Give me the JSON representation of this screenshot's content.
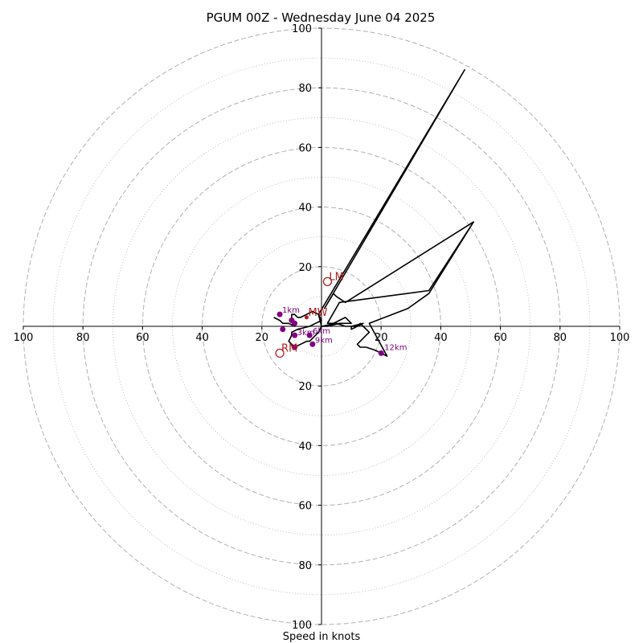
{
  "chart_data": {
    "type": "hodograph",
    "title": "PGUM 00Z - Wednesday June 04 2025",
    "xlabel": "Speed in knots",
    "rings": [
      20,
      40,
      60,
      80,
      100
    ],
    "minor_rings": [
      10,
      30,
      50,
      70,
      90
    ],
    "tick_labels": [
      "100",
      "80",
      "60",
      "40",
      "20",
      "20",
      "40",
      "60",
      "80",
      "100"
    ],
    "axis_range": [
      -100,
      100
    ],
    "colors": {
      "trace": "#000000",
      "height": "#800080",
      "motion": "#b22222",
      "grid": "#b0b0b0"
    },
    "trace": [
      [
        -16,
        3
      ],
      [
        -14,
        2
      ],
      [
        -13,
        1
      ],
      [
        -11,
        1
      ],
      [
        -9,
        0
      ],
      [
        -9,
        1
      ],
      [
        -10,
        2
      ],
      [
        -10,
        4
      ],
      [
        -9,
        4
      ],
      [
        -8,
        3
      ],
      [
        -7,
        3
      ],
      [
        -5,
        4
      ],
      [
        -3,
        5
      ],
      [
        -1,
        4
      ],
      [
        0,
        2
      ],
      [
        -2,
        1
      ],
      [
        -4,
        0
      ],
      [
        -8,
        -1
      ],
      [
        -10,
        -2
      ],
      [
        -10,
        -3
      ],
      [
        -11,
        -5
      ],
      [
        -10,
        -6
      ],
      [
        -9,
        -7
      ],
      [
        -7,
        -6
      ],
      [
        -5,
        -5
      ],
      [
        -4,
        -5
      ],
      [
        -3,
        -4
      ],
      [
        -1,
        -2
      ],
      [
        0,
        0
      ],
      [
        2,
        0
      ],
      [
        6,
        1
      ],
      [
        8,
        1
      ],
      [
        10,
        1
      ],
      [
        9,
        2
      ],
      [
        8,
        3
      ],
      [
        6,
        2
      ],
      [
        4,
        1
      ],
      [
        2,
        1
      ],
      [
        6,
        8
      ],
      [
        36,
        12
      ],
      [
        51,
        35
      ],
      [
        8,
        8
      ],
      [
        5,
        10
      ],
      [
        4,
        11
      ],
      [
        1,
        6
      ],
      [
        48,
        86
      ],
      [
        -1,
        4
      ],
      [
        0,
        0
      ],
      [
        5,
        1
      ],
      [
        8,
        0
      ],
      [
        12,
        0
      ],
      [
        14,
        1
      ],
      [
        10,
        0
      ],
      [
        10,
        -1
      ],
      [
        12,
        0
      ],
      [
        13,
        1
      ],
      [
        14,
        0
      ],
      [
        16,
        -2
      ],
      [
        15,
        -3
      ],
      [
        13,
        -5
      ],
      [
        12,
        -6
      ],
      [
        13,
        -7
      ],
      [
        15,
        -7
      ],
      [
        18,
        -8
      ],
      [
        20,
        -9
      ],
      [
        22,
        -10
      ],
      [
        16,
        1
      ],
      [
        29,
        6
      ],
      [
        36,
        11
      ],
      [
        51,
        35
      ]
    ],
    "heights": [
      {
        "label": "1km",
        "u": -14,
        "v": 4
      },
      {
        "label": "3km",
        "u": -9,
        "v": -3
      },
      {
        "label": "6km",
        "u": -4,
        "v": -3
      },
      {
        "label": "9km",
        "u": -3,
        "v": -6
      },
      {
        "label": "12km",
        "u": 20,
        "v": -9
      },
      {
        "label": "",
        "u": -13,
        "v": -1
      },
      {
        "label": "",
        "u": -9,
        "v": -7
      },
      {
        "label": "",
        "u": -10,
        "v": 2
      },
      {
        "label": "",
        "u": -9,
        "v": 1
      }
    ],
    "height_label_offsets": [
      [
        3,
        -2
      ],
      [
        3,
        0
      ],
      [
        4,
        -2
      ],
      [
        3,
        -2
      ],
      [
        4,
        -4
      ]
    ],
    "motions": [
      {
        "label": "LM",
        "u": 2,
        "v": 15
      },
      {
        "label": "RM",
        "u": -14,
        "v": -9
      },
      {
        "label": "MW",
        "u": -5,
        "v": 3
      }
    ]
  }
}
